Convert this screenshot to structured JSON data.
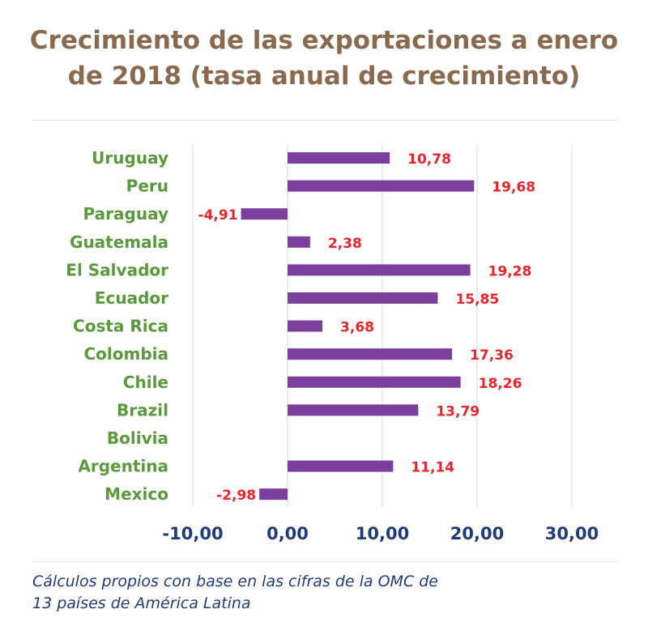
{
  "title_line1": "Crecimiento de las exportaciones a enero",
  "title_line2": "de 2018  (tasa anual de crecimiento)",
  "note_line1": "Cálculos propios con base en las cifras de la OMC de",
  "note_line2": "13 países de América Latina",
  "colors": {
    "title": "#8a6a4f",
    "bar": "#7d3f9e",
    "category_label": "#5a9a3c",
    "value_label": "#e8252c",
    "tick_label": "#1f3c7a",
    "note": "#1f3c7a",
    "grid": "#d9d9d9"
  },
  "chart_data": {
    "type": "bar",
    "orientation": "horizontal",
    "categories": [
      "Uruguay",
      "Peru",
      "Paraguay",
      "Guatemala",
      "El Salvador",
      "Ecuador",
      "Costa Rica",
      "Colombia",
      "Chile",
      "Brazil",
      "Bolivia",
      "Argentina",
      "Mexico"
    ],
    "values": [
      10.78,
      19.68,
      -4.91,
      2.38,
      19.28,
      15.85,
      3.68,
      17.36,
      18.26,
      13.79,
      null,
      11.14,
      -2.98
    ],
    "value_labels": [
      "10,78",
      "19,68",
      "-4,91",
      "2,38",
      "19,28",
      "15,85",
      "3,68",
      "17,36",
      "18,26",
      "13,79",
      "",
      "11,14",
      "-2,98"
    ],
    "xlim": [
      -10,
      30
    ],
    "xticks": [
      -10,
      0,
      10,
      20,
      30
    ],
    "xtick_labels": [
      "-10,00",
      "0,00",
      "10,00",
      "20,00",
      "30,00"
    ],
    "grid": true,
    "legend": "none"
  }
}
